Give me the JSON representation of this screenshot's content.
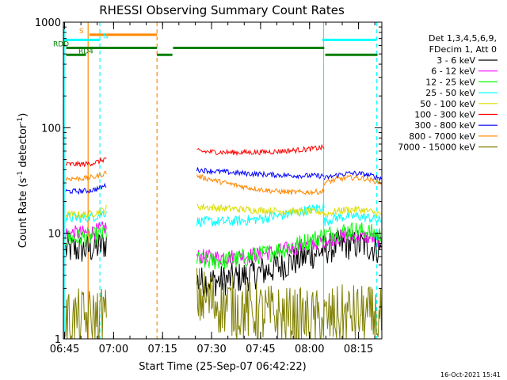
{
  "chart_data": {
    "type": "line",
    "title": "RHESSI Observing Summary Count Rates",
    "xlabel": "Start Time (25-Sep-07 06:42:22)",
    "ylabel_main": "Count Rate (s",
    "ylabel_sup1": "-1",
    "ylabel_mid": " detector",
    "ylabel_sup2": "-1",
    "ylabel_end": ")",
    "yscale": "log",
    "ylim": [
      1,
      1000
    ],
    "xlim_minutes": [
      -0.37,
      97.13
    ],
    "x_unit": "minutes after 06:45",
    "x_ticks": [
      {
        "label": "06:45",
        "m": 0
      },
      {
        "label": "07:00",
        "m": 15
      },
      {
        "label": "07:15",
        "m": 30
      },
      {
        "label": "07:30",
        "m": 45
      },
      {
        "label": "07:45",
        "m": 60
      },
      {
        "label": "08:00",
        "m": 75
      },
      {
        "label": "08:15",
        "m": 90
      }
    ],
    "y_ticks": [
      {
        "label": "1",
        "v": 1
      },
      {
        "label": "10",
        "v": 10
      },
      {
        "label": "100",
        "v": 100
      },
      {
        "label": "1000",
        "v": 1000
      }
    ],
    "legend_header": [
      "Det 1,3,4,5,6,9,",
      "FDecim 1, Att 0"
    ],
    "timestamp": "16-Oct-2021 15:41",
    "segments": [
      [
        0,
        12.8
      ],
      [
        40.5,
        79.5
      ],
      [
        79.5,
        97.0
      ]
    ],
    "series": [
      {
        "name": "3 - 6 keV",
        "color": "#000000",
        "level": [
          7.0,
          3.5,
          3.3,
          7.0,
          7.0
        ],
        "noise": 0.3
      },
      {
        "name": "6 - 12 keV",
        "color": "#ff00ff",
        "level": [
          10,
          6.0,
          5.5,
          8.5,
          8.5
        ],
        "noise": 0.15
      },
      {
        "name": "12 - 25 keV",
        "color": "#00ff00",
        "level": [
          9,
          5.5,
          5.0,
          9.5,
          9.5
        ],
        "noise": 0.18
      },
      {
        "name": "25 - 50 keV",
        "color": "#00ffff",
        "level": [
          14,
          13,
          12,
          18,
          13
        ],
        "noise": 0.1
      },
      {
        "name": "50 - 100 keV",
        "color": "#dddd00",
        "level": [
          15,
          18,
          16,
          16,
          15
        ],
        "noise": 0.07
      },
      {
        "name": "100 - 300 keV",
        "color": "#ff0000",
        "level": [
          45,
          60,
          55,
          65,
          0
        ],
        "noise": 0.05
      },
      {
        "name": "300 - 800 keV",
        "color": "#0000ff",
        "level": [
          25,
          40,
          35,
          35,
          33
        ],
        "noise": 0.05
      },
      {
        "name": "800 - 7000 keV",
        "color": "#ff8800",
        "level": [
          33,
          35,
          22,
          25,
          30
        ],
        "noise": 0.05
      },
      {
        "name": "7000 - 15000 keV",
        "color": "#808000",
        "level": [
          1.5,
          2.5,
          1.5,
          1.5,
          1.5
        ],
        "noise": 0.6
      }
    ],
    "flags": [
      {
        "label": "S",
        "color": "#ff8800",
        "v": 760,
        "ranges": [
          [
            7.6,
            28.3
          ]
        ]
      },
      {
        "label": "N",
        "color": "#00ffff",
        "v": 680,
        "ranges": [
          [
            -0.3,
            10.8
          ],
          [
            78.9,
            95.5
          ]
        ]
      },
      {
        "label": "RDD",
        "color": "#008000",
        "v": 570,
        "ranges": [
          [
            0.5,
            28.3
          ],
          [
            33.2,
            79.5
          ]
        ]
      },
      {
        "label": "RD4",
        "color": "#008000",
        "v": 490,
        "ranges": [
          [
            0.5,
            6.5
          ],
          [
            28.3,
            33.0
          ],
          [
            79.8,
            95.8
          ]
        ]
      }
    ],
    "vlines": [
      {
        "m": -0.1,
        "color": "#00ffff",
        "style": "solid"
      },
      {
        "m": 7.2,
        "color": "#ff8800",
        "style": "solid"
      },
      {
        "m": 10.8,
        "color": "#00ffff",
        "style": "dashed"
      },
      {
        "m": 28.3,
        "color": "#ff8800",
        "style": "dashed"
      },
      {
        "m": 79.3,
        "color": "#00ffff",
        "style": "solid"
      },
      {
        "m": 95.6,
        "color": "#00ffff",
        "style": "dashed"
      }
    ]
  }
}
